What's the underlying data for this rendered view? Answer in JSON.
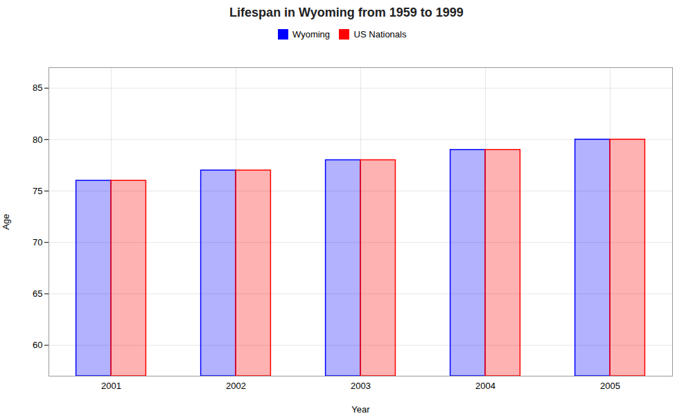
{
  "chart_data": {
    "type": "bar",
    "title": "Lifespan in Wyoming from 1959 to 1999",
    "xlabel": "Year",
    "ylabel": "Age",
    "categories": [
      "2001",
      "2002",
      "2003",
      "2004",
      "2005"
    ],
    "series": [
      {
        "name": "Wyoming",
        "color": "#0000ff",
        "values": [
          76,
          77,
          78,
          79,
          80
        ]
      },
      {
        "name": "US Nationals",
        "color": "#ff0000",
        "values": [
          76,
          77,
          78,
          79,
          80
        ]
      }
    ],
    "ylim": [
      57,
      87
    ],
    "yticks": [
      60,
      65,
      70,
      75,
      80,
      85
    ],
    "grid": true,
    "legend": "top"
  }
}
